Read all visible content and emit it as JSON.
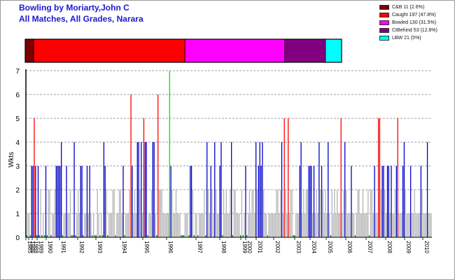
{
  "title_line1": "Bowling by Moriarty,John C",
  "title_line2": "All Matches, All Grades, Narara",
  "legend": [
    {
      "label": "C&B 11 (2.6%)",
      "color": "#7b0000"
    },
    {
      "label": "Caught 197 (47.8%)",
      "color": "#ff0000"
    },
    {
      "label": "Bowled 130 (31.5%)",
      "color": "#ff00ff"
    },
    {
      "label": "CtBehind 53 (12.8%)",
      "color": "#800080"
    },
    {
      "label": "LBW 21 (5%)",
      "color": "#00ffff"
    }
  ],
  "chart_data": [
    {
      "type": "bar",
      "subtype": "stacked-proportion",
      "segments": [
        {
          "name": "C&B",
          "value": 11,
          "percent": 2.6,
          "color": "#7b0000"
        },
        {
          "name": "Caught",
          "value": 197,
          "percent": 47.8,
          "color": "#ff0000"
        },
        {
          "name": "Bowled",
          "value": 130,
          "percent": 31.5,
          "color": "#ff00ff"
        },
        {
          "name": "CtBehind",
          "value": 53,
          "percent": 12.8,
          "color": "#800080"
        },
        {
          "name": "LBW",
          "value": 21,
          "percent": 5,
          "color": "#00ffff"
        }
      ]
    },
    {
      "type": "bar",
      "ylabel": "Wkts",
      "ylim": [
        0,
        7
      ],
      "yticks": [
        "0",
        "1",
        "2",
        "3",
        "4",
        "5",
        "6",
        "7"
      ],
      "grid": true,
      "xticks": [
        "1985",
        "1986",
        "1988",
        "1989",
        "1990",
        "1991",
        "1992",
        "1993",
        "1994",
        "1995",
        "1996",
        "1997",
        "1998",
        "1999",
        "2000",
        "2001",
        "2002",
        "2003",
        "2004",
        "2005",
        "2006",
        "2007",
        "2008",
        "2009",
        "2010"
      ],
      "color_rules": [
        {
          "range": "0-2",
          "color": "#b4b4b4"
        },
        {
          "range": "3-4",
          "color": "#0000c8"
        },
        {
          "range": "5-6",
          "color": "#ff0000"
        },
        {
          "range": "7+",
          "color": "#00e000"
        }
      ],
      "values": [
        0,
        1,
        1,
        0,
        3,
        3,
        5,
        3,
        0,
        3,
        0,
        2,
        0,
        1,
        0,
        3,
        0,
        2,
        2,
        0,
        1,
        1,
        2,
        3,
        3,
        3,
        3,
        4,
        0,
        1,
        1,
        3,
        1,
        1,
        2,
        0,
        0,
        4,
        0,
        1,
        2,
        1,
        3,
        3,
        0,
        1,
        1,
        3,
        1,
        3,
        1,
        0,
        1,
        0,
        0,
        2,
        1,
        0,
        1,
        0,
        4,
        3,
        2,
        0,
        1,
        1,
        1,
        2,
        2,
        0,
        1,
        1,
        2,
        2,
        1,
        3,
        0,
        1,
        1,
        1,
        2,
        6,
        3,
        1,
        2,
        1,
        4,
        4,
        2,
        4,
        1,
        5,
        4,
        4,
        0,
        1,
        1,
        2,
        4,
        4,
        1,
        0,
        6,
        2,
        2,
        2,
        1,
        1,
        1,
        1,
        1,
        7,
        3,
        2,
        1,
        1,
        2,
        1,
        1,
        1,
        0,
        0,
        0,
        1,
        1,
        1,
        0,
        3,
        3,
        2,
        0,
        1,
        1,
        0,
        1,
        1,
        1,
        1,
        2,
        0,
        4,
        2,
        1,
        3,
        2,
        1,
        4,
        2,
        1,
        1,
        3,
        4,
        0,
        2,
        1,
        2,
        1,
        1,
        2,
        4,
        0,
        2,
        2,
        1,
        1,
        1,
        0,
        2,
        0,
        1,
        3,
        0,
        1,
        2,
        1,
        2,
        2,
        1,
        4,
        2,
        3,
        4,
        3,
        4,
        2,
        1,
        1,
        0,
        1,
        1,
        1,
        1,
        1,
        1,
        2,
        2,
        1,
        2,
        4,
        1,
        5,
        2,
        1,
        5,
        1,
        2,
        2,
        0,
        0,
        1,
        1,
        1,
        3,
        4,
        1,
        2,
        1,
        2,
        2,
        3,
        3,
        3,
        1,
        3,
        1,
        2,
        1,
        4,
        2,
        3,
        2,
        1,
        2,
        1,
        4,
        1,
        0,
        2,
        1,
        2,
        1,
        2,
        1,
        1,
        5,
        1,
        2,
        4,
        2,
        1,
        1,
        1,
        3,
        1,
        1,
        0,
        1,
        2,
        2,
        1,
        1,
        2,
        1,
        1,
        1,
        2,
        0,
        2,
        2,
        1,
        3,
        1,
        1,
        5,
        5,
        2,
        3,
        3,
        2,
        1,
        3,
        3,
        1,
        3,
        1,
        1,
        2,
        3,
        5,
        1,
        1,
        1,
        3,
        4,
        2,
        1,
        1,
        1,
        3,
        1,
        1,
        2,
        1,
        1,
        1,
        1,
        3,
        2,
        1,
        1,
        1,
        4,
        1,
        1,
        1
      ]
    }
  ]
}
